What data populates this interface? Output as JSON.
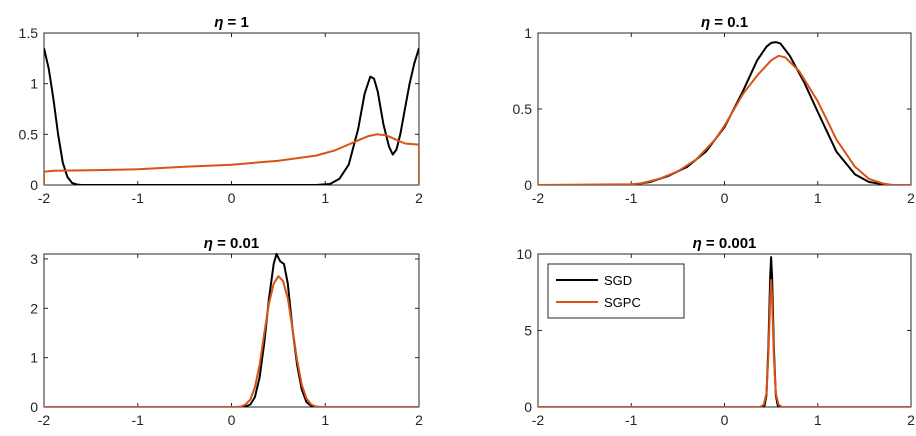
{
  "colors": {
    "sgd": "#000000",
    "sgpc": "#D95319",
    "axis": "#262626"
  },
  "legend": {
    "placement": "top-left",
    "panel": 3,
    "entries": [
      "SGD",
      "SGPC"
    ]
  },
  "chart_data": [
    {
      "type": "line",
      "title": "η = 1",
      "title_eta": "η",
      "title_value": " = 1",
      "xlim": [
        -2,
        2
      ],
      "ylim": [
        0,
        1.5
      ],
      "xticks": [
        -2,
        -1,
        0,
        1,
        2
      ],
      "yticks": [
        0,
        0.5,
        1,
        1.5
      ],
      "xtick_labels": [
        "-2",
        "-1",
        "0",
        "1",
        "2"
      ],
      "ytick_labels": [
        "0",
        "0.5",
        "1",
        "1.5"
      ],
      "series": [
        {
          "name": "SGD",
          "x": [
            -2,
            -1.95,
            -1.9,
            -1.85,
            -1.8,
            -1.75,
            -1.7,
            -1.65,
            -1.6,
            -1.5,
            -1.0,
            0.0,
            0.9,
            1.05,
            1.15,
            1.25,
            1.35,
            1.42,
            1.48,
            1.52,
            1.56,
            1.62,
            1.68,
            1.72,
            1.76,
            1.8,
            1.85,
            1.9,
            1.95,
            2.0
          ],
          "y": [
            1.35,
            1.15,
            0.85,
            0.5,
            0.22,
            0.08,
            0.02,
            0.005,
            0,
            0,
            0,
            0,
            0,
            0.01,
            0.06,
            0.2,
            0.55,
            0.9,
            1.07,
            1.05,
            0.92,
            0.6,
            0.38,
            0.3,
            0.35,
            0.5,
            0.75,
            1.0,
            1.2,
            1.35
          ]
        },
        {
          "name": "SGPC",
          "x": [
            -2,
            -2,
            -1.9,
            -1.5,
            -1.0,
            -0.5,
            0.0,
            0.5,
            0.9,
            1.1,
            1.3,
            1.45,
            1.55,
            1.65,
            1.75,
            1.85,
            1.98,
            2.0,
            2.0
          ],
          "y": [
            0,
            0.13,
            0.14,
            0.145,
            0.155,
            0.18,
            0.2,
            0.24,
            0.29,
            0.34,
            0.42,
            0.48,
            0.5,
            0.49,
            0.45,
            0.41,
            0.4,
            0.4,
            0
          ]
        }
      ]
    },
    {
      "type": "line",
      "title": "η = 0.1",
      "title_eta": "η",
      "title_value": " = 0.1",
      "xlim": [
        -2,
        2
      ],
      "ylim": [
        0,
        1
      ],
      "xticks": [
        -2,
        -1,
        0,
        1,
        2
      ],
      "yticks": [
        0,
        0.5,
        1
      ],
      "xtick_labels": [
        "-2",
        "-1",
        "0",
        "1",
        "2"
      ],
      "ytick_labels": [
        "0",
        "0.5",
        "1"
      ],
      "series": [
        {
          "name": "SGD",
          "x": [
            -2,
            -1.0,
            -0.95,
            -0.8,
            -0.6,
            -0.4,
            -0.2,
            0.0,
            0.2,
            0.35,
            0.45,
            0.5,
            0.55,
            0.6,
            0.7,
            0.85,
            1.0,
            1.2,
            1.4,
            1.55,
            1.7,
            1.8,
            2.0
          ],
          "y": [
            0,
            0,
            0.005,
            0.02,
            0.06,
            0.12,
            0.22,
            0.38,
            0.62,
            0.82,
            0.91,
            0.935,
            0.94,
            0.93,
            0.85,
            0.68,
            0.48,
            0.22,
            0.07,
            0.02,
            0.005,
            0,
            0
          ]
        },
        {
          "name": "SGPC",
          "x": [
            -2,
            -1.0,
            -0.9,
            -0.7,
            -0.5,
            -0.3,
            -0.1,
            0.0,
            0.2,
            0.35,
            0.5,
            0.58,
            0.65,
            0.8,
            1.0,
            1.2,
            1.4,
            1.55,
            1.7,
            1.8,
            2.0
          ],
          "y": [
            0,
            0.005,
            0.01,
            0.04,
            0.09,
            0.17,
            0.3,
            0.39,
            0.6,
            0.72,
            0.82,
            0.85,
            0.84,
            0.75,
            0.55,
            0.3,
            0.12,
            0.04,
            0.01,
            0,
            0
          ]
        }
      ]
    },
    {
      "type": "line",
      "title": "η = 0.01",
      "title_eta": "η",
      "title_value": " = 0.01",
      "xlim": [
        -2,
        2
      ],
      "ylim": [
        0,
        3.1
      ],
      "xticks": [
        -2,
        -1,
        0,
        1,
        2
      ],
      "yticks": [
        0,
        1,
        2,
        3
      ],
      "xtick_labels": [
        "-2",
        "-1",
        "0",
        "1",
        "2"
      ],
      "ytick_labels": [
        "0",
        "1",
        "2",
        "3"
      ],
      "series": [
        {
          "name": "SGD",
          "x": [
            -2,
            0.1,
            0.15,
            0.2,
            0.25,
            0.3,
            0.35,
            0.4,
            0.45,
            0.48,
            0.52,
            0.56,
            0.6,
            0.65,
            0.7,
            0.75,
            0.8,
            0.85,
            0.9,
            2.0
          ],
          "y": [
            0,
            0,
            0.01,
            0.05,
            0.2,
            0.6,
            1.3,
            2.2,
            2.9,
            3.1,
            2.95,
            2.9,
            2.5,
            1.6,
            0.85,
            0.35,
            0.1,
            0.02,
            0,
            0
          ]
        },
        {
          "name": "SGPC",
          "x": [
            -2,
            0.05,
            0.1,
            0.15,
            0.2,
            0.25,
            0.3,
            0.35,
            0.4,
            0.45,
            0.5,
            0.55,
            0.6,
            0.65,
            0.7,
            0.75,
            0.8,
            0.85,
            0.9,
            0.95,
            2.0
          ],
          "y": [
            0,
            0,
            0.01,
            0.05,
            0.15,
            0.4,
            0.85,
            1.5,
            2.1,
            2.5,
            2.65,
            2.55,
            2.2,
            1.6,
            0.95,
            0.45,
            0.17,
            0.05,
            0.01,
            0,
            0
          ]
        }
      ]
    },
    {
      "type": "line",
      "title": "η = 0.001",
      "title_eta": "η",
      "title_value": " = 0.001",
      "xlim": [
        -2,
        2
      ],
      "ylim": [
        0,
        10
      ],
      "xticks": [
        -2,
        -1,
        0,
        1,
        2
      ],
      "yticks": [
        0,
        5,
        10
      ],
      "xtick_labels": [
        "-2",
        "-1",
        "0",
        "1",
        "2"
      ],
      "ytick_labels": [
        "0",
        "5",
        "10"
      ],
      "series": [
        {
          "name": "SGD",
          "x": [
            -2,
            0.4,
            0.43,
            0.45,
            0.47,
            0.49,
            0.5,
            0.51,
            0.53,
            0.55,
            0.57,
            0.6,
            2.0
          ],
          "y": [
            0,
            0,
            0.1,
            0.8,
            3.8,
            8.5,
            9.8,
            8.5,
            3.8,
            0.8,
            0.1,
            0,
            0
          ]
        },
        {
          "name": "SGPC",
          "x": [
            -2,
            0.38,
            0.42,
            0.45,
            0.47,
            0.49,
            0.5,
            0.51,
            0.53,
            0.55,
            0.58,
            0.62,
            2.0
          ],
          "y": [
            0,
            0,
            0.15,
            0.9,
            3.2,
            7.0,
            8.3,
            7.0,
            3.2,
            0.9,
            0.15,
            0,
            0
          ]
        }
      ]
    }
  ]
}
